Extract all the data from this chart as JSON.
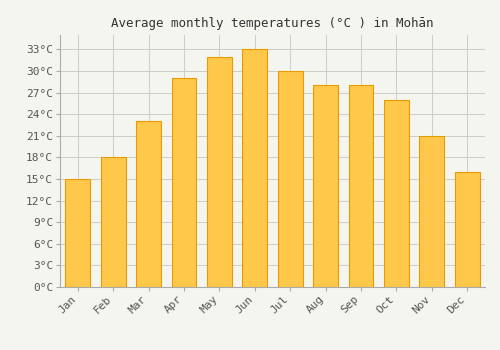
{
  "title": "Average monthly temperatures (°C ) in Mohān",
  "months": [
    "Jan",
    "Feb",
    "Mar",
    "Apr",
    "May",
    "Jun",
    "Jul",
    "Aug",
    "Sep",
    "Oct",
    "Nov",
    "Dec"
  ],
  "values": [
    15,
    18,
    23,
    29,
    32,
    33,
    30,
    28,
    28,
    26,
    21,
    16
  ],
  "bar_color_top": "#FFC84A",
  "bar_color_bottom": "#F5A623",
  "bar_edge_color": "#E89B00",
  "background_color": "#f5f5f0",
  "plot_bg_color": "#f5f5f0",
  "grid_color": "#cccccc",
  "ylim": [
    0,
    35
  ],
  "yticks": [
    0,
    3,
    6,
    9,
    12,
    15,
    18,
    21,
    24,
    27,
    30,
    33
  ],
  "ytick_labels": [
    "0°C",
    "3°C",
    "6°C",
    "9°C",
    "12°C",
    "15°C",
    "18°C",
    "21°C",
    "24°C",
    "27°C",
    "30°C",
    "33°C"
  ],
  "title_fontsize": 9,
  "tick_fontsize": 8,
  "font_family": "monospace",
  "bar_width": 0.7
}
